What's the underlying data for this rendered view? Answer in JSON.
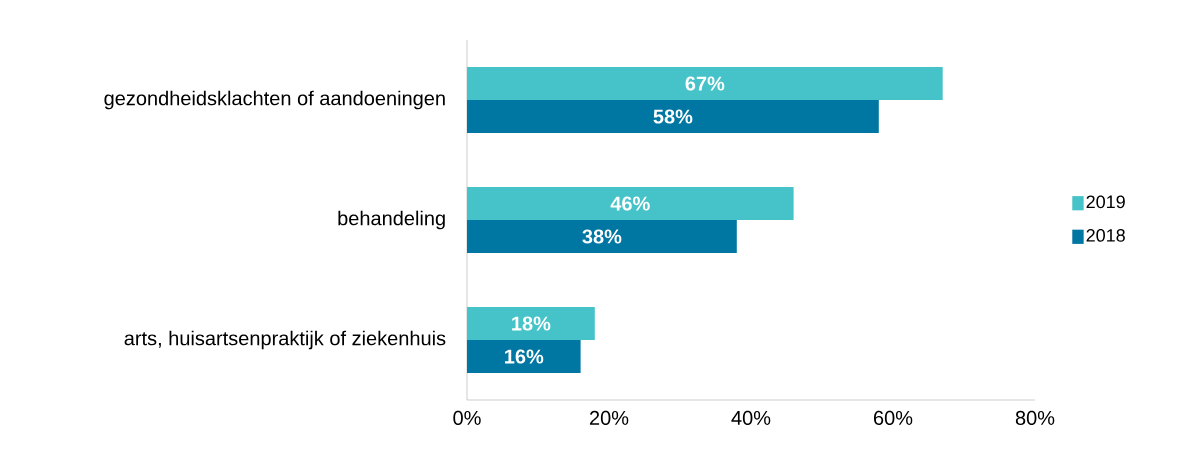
{
  "chart_data": {
    "type": "bar",
    "orientation": "horizontal",
    "categories": [
      "gezondheidsklachten of aandoeningen",
      "behandeling",
      "arts, huisartsenpraktijk of ziekenhuis"
    ],
    "series": [
      {
        "name": "2019",
        "color": "#45c3c8",
        "values": [
          67,
          46,
          18
        ],
        "value_labels": [
          "67%",
          "46%",
          "18%"
        ]
      },
      {
        "name": "2018",
        "color": "#0076a2",
        "values": [
          58,
          38,
          16
        ],
        "value_labels": [
          "58%",
          "38%",
          "16%"
        ]
      }
    ],
    "xlim": [
      0,
      80
    ],
    "xticks": [
      {
        "value": 0,
        "label": "0%"
      },
      {
        "value": 20,
        "label": "20%"
      },
      {
        "value": 40,
        "label": "40%"
      },
      {
        "value": 60,
        "label": "60%"
      },
      {
        "value": 80,
        "label": "80%"
      }
    ],
    "grid": false,
    "legend": "right"
  }
}
